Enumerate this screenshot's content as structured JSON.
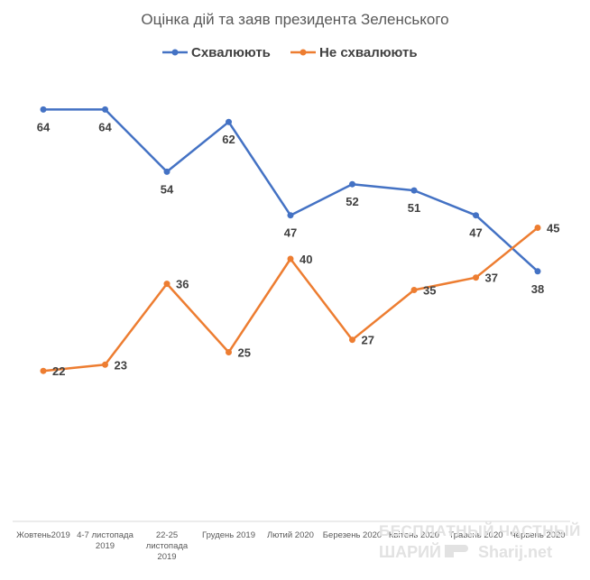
{
  "chart_data": {
    "type": "line",
    "title": "Оцінка дій та заяв президента Зеленського",
    "xlabel": "",
    "ylabel": "",
    "grid": false,
    "legend_position": "top",
    "ylim": [
      0,
      70
    ],
    "categories": [
      [
        "Жовтень2019"
      ],
      [
        "4-7 листопада",
        "2019"
      ],
      [
        "22-25",
        "листопада",
        "2019"
      ],
      [
        "Грудень 2019"
      ],
      [
        "Лютий 2020"
      ],
      [
        "Березень 2020"
      ],
      [
        "Квітень 2020"
      ],
      [
        "Травень 2020"
      ],
      [
        "Червень 2020"
      ]
    ],
    "series": [
      {
        "name": "Схвалюють",
        "color": "#4472c4",
        "values": [
          64,
          64,
          54,
          62,
          47,
          52,
          51,
          47,
          38
        ]
      },
      {
        "name": "Не схвалюють",
        "color": "#ed7d31",
        "values": [
          22,
          23,
          36,
          25,
          40,
          27,
          35,
          37,
          45
        ]
      }
    ]
  },
  "watermark": {
    "line1": "БЕСПЛАТНЫЙ ЧАСТНЫЙ",
    "line2_left": "ШАРИЙ",
    "line2_right": "Sharij.net",
    "icon": "pointing-hand-icon"
  }
}
